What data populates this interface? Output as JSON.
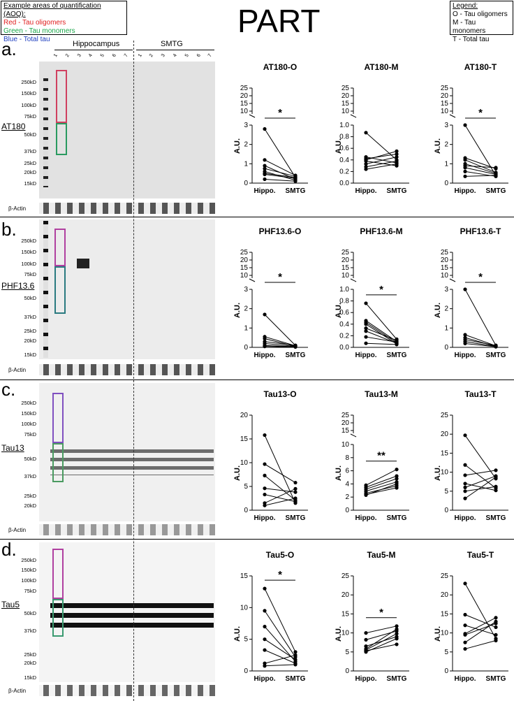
{
  "aoq_box": {
    "title": "Example areas of quantification (AOQ):",
    "lines": [
      {
        "text": "Red - Tau oligomers",
        "color": "#e02020"
      },
      {
        "text": "Green - Tau monomers",
        "color": "#1aa64a"
      },
      {
        "text": "Blue - Total tau",
        "color": "#2040c0"
      }
    ]
  },
  "main_title": "PART",
  "legend_box": {
    "title": "Legend:",
    "lines": [
      "O - Tau oligomers",
      "M - Tau monomers",
      "T - Total tau"
    ]
  },
  "group_headers": {
    "left": "Hippocampus",
    "right": "SMTG"
  },
  "lane_numbers": [
    "1",
    "2",
    "3",
    "4",
    "5",
    "6",
    "7",
    "1",
    "2",
    "3",
    "4",
    "5",
    "6",
    "7"
  ],
  "actin_label": "β-Actin",
  "panels": [
    {
      "letter": "a.",
      "antibody": "AT180",
      "markers": [
        "250kD",
        "150kD",
        "100kD",
        "75kD",
        "50kD",
        "37kD",
        "25kD",
        "20kD",
        "15kD"
      ]
    },
    {
      "letter": "b.",
      "antibody": "PHF13.6",
      "markers": [
        "250kD",
        "150kD",
        "100kD",
        "75kD",
        "50kD",
        "37kD",
        "25kD",
        "20kD",
        "15kD"
      ]
    },
    {
      "letter": "c.",
      "antibody": "Tau13",
      "markers": [
        "250kD",
        "150kD",
        "100kD",
        "75kD",
        "50kD",
        "37kD",
        "25kD",
        "20kD"
      ]
    },
    {
      "letter": "d.",
      "antibody": "Tau5",
      "markers": [
        "250kD",
        "150kD",
        "100kD",
        "75kD",
        "50kD",
        "37kD",
        "25kD",
        "20kD",
        "15kD"
      ]
    }
  ],
  "chart_data": [
    {
      "type": "scatter",
      "title": "AT180-O",
      "ylabel": "A.U.",
      "categories": [
        "Hippo.",
        "SMTG"
      ],
      "broken_axis": true,
      "yticks_low": [
        "0",
        "1",
        "2",
        "3"
      ],
      "yticks_high": [
        "10",
        "15",
        "20",
        "25"
      ],
      "significance": "*",
      "pairs": [
        [
          2.8,
          0.3
        ],
        [
          1.2,
          0.4
        ],
        [
          0.9,
          0.2
        ],
        [
          0.75,
          0.35
        ],
        [
          0.6,
          0.15
        ],
        [
          0.5,
          0.3
        ],
        [
          0.45,
          0.25
        ],
        [
          0.2,
          0.1
        ]
      ]
    },
    {
      "type": "scatter",
      "title": "AT180-M",
      "ylabel": "A.U.",
      "categories": [
        "Hippo.",
        "SMTG"
      ],
      "broken_axis": true,
      "yticks_low": [
        "0.0",
        "0.2",
        "0.4",
        "0.6",
        "0.8",
        "1.0"
      ],
      "yticks_high": [
        "10",
        "15",
        "20",
        "25"
      ],
      "significance": "",
      "pairs": [
        [
          0.87,
          0.4
        ],
        [
          0.45,
          0.35
        ],
        [
          0.42,
          0.5
        ],
        [
          0.4,
          0.55
        ],
        [
          0.38,
          0.3
        ],
        [
          0.33,
          0.45
        ],
        [
          0.28,
          0.38
        ],
        [
          0.24,
          0.33
        ]
      ]
    },
    {
      "type": "scatter",
      "title": "AT180-T",
      "ylabel": "A.U.",
      "categories": [
        "Hippo.",
        "SMTG"
      ],
      "broken_axis": true,
      "yticks_low": [
        "0",
        "1",
        "2",
        "3"
      ],
      "yticks_high": [
        "10",
        "15",
        "20",
        "25"
      ],
      "significance": "*",
      "pairs": [
        [
          3.5,
          0.4
        ],
        [
          1.3,
          0.75
        ],
        [
          1.2,
          0.55
        ],
        [
          1.0,
          0.5
        ],
        [
          0.9,
          0.8
        ],
        [
          0.8,
          0.45
        ],
        [
          0.6,
          0.35
        ],
        [
          0.35,
          0.4
        ]
      ]
    },
    {
      "type": "scatter",
      "title": "PHF13.6-O",
      "ylabel": "A.U.",
      "categories": [
        "Hippo.",
        "SMTG"
      ],
      "broken_axis": true,
      "yticks_low": [
        "0",
        "1",
        "2",
        "3"
      ],
      "yticks_high": [
        "10",
        "15",
        "20",
        "25"
      ],
      "significance": "*",
      "pairs": [
        [
          1.7,
          0.1
        ],
        [
          0.55,
          0.08
        ],
        [
          0.45,
          0.05
        ],
        [
          0.3,
          0.1
        ],
        [
          0.2,
          0.05
        ],
        [
          0.1,
          0.03
        ],
        [
          0.05,
          0.02
        ]
      ]
    },
    {
      "type": "scatter",
      "title": "PHF13.6-M",
      "ylabel": "A.U.",
      "categories": [
        "Hippo.",
        "SMTG"
      ],
      "broken_axis": true,
      "yticks_low": [
        "0.0",
        "0.2",
        "0.4",
        "0.6",
        "0.8",
        "1.0"
      ],
      "yticks_high": [
        "10",
        "15",
        "20",
        "25"
      ],
      "significance": "*",
      "pairs": [
        [
          0.76,
          0.14
        ],
        [
          0.46,
          0.1
        ],
        [
          0.43,
          0.08
        ],
        [
          0.4,
          0.06
        ],
        [
          0.33,
          0.12
        ],
        [
          0.28,
          0.07
        ],
        [
          0.18,
          0.09
        ],
        [
          0.07,
          0.05
        ]
      ]
    },
    {
      "type": "scatter",
      "title": "PHF13.6-T",
      "ylabel": "A.U.",
      "categories": [
        "Hippo.",
        "SMTG"
      ],
      "broken_axis": true,
      "yticks_low": [
        "0",
        "1",
        "2",
        "3"
      ],
      "yticks_high": [
        "10",
        "15",
        "20",
        "25"
      ],
      "significance": "*",
      "pairs": [
        [
          3.0,
          0.1
        ],
        [
          0.65,
          0.08
        ],
        [
          0.5,
          0.05
        ],
        [
          0.4,
          0.1
        ],
        [
          0.3,
          0.05
        ],
        [
          0.2,
          0.03
        ]
      ]
    },
    {
      "type": "scatter",
      "title": "Tau13-O",
      "ylabel": "A.U.",
      "categories": [
        "Hippo.",
        "SMTG"
      ],
      "broken_axis": false,
      "yticks_low": [
        "0",
        "5",
        "10",
        "15",
        "20"
      ],
      "yticks_high": [],
      "significance": "",
      "pairs": [
        [
          15.8,
          1.5
        ],
        [
          9.7,
          5.8
        ],
        [
          7.3,
          2.1
        ],
        [
          4.6,
          3.8
        ],
        [
          3.3,
          1.8
        ],
        [
          1.5,
          4.5
        ],
        [
          1.0,
          2.5
        ]
      ],
      "ylim": [
        0,
        20
      ]
    },
    {
      "type": "scatter",
      "title": "Tau13-M",
      "ylabel": "A.U.",
      "categories": [
        "Hippo.",
        "SMTG"
      ],
      "broken_axis": true,
      "yticks_low": [
        "0",
        "2",
        "4",
        "6",
        "8",
        "10"
      ],
      "yticks_high": [
        "15",
        "20",
        "25"
      ],
      "significance": "**",
      "pairs": [
        [
          3.8,
          6.2
        ],
        [
          3.5,
          5.2
        ],
        [
          3.2,
          4.8
        ],
        [
          2.9,
          4.3
        ],
        [
          2.6,
          3.7
        ],
        [
          2.4,
          3.4
        ],
        [
          2.3,
          4.0
        ]
      ]
    },
    {
      "type": "scatter",
      "title": "Tau13-T",
      "ylabel": "A.U.",
      "categories": [
        "Hippo.",
        "SMTG"
      ],
      "broken_axis": false,
      "yticks_low": [
        "0",
        "5",
        "10",
        "15",
        "20",
        "25"
      ],
      "yticks_high": [],
      "significance": "",
      "pairs": [
        [
          19.7,
          8.3
        ],
        [
          11.9,
          5.8
        ],
        [
          9.2,
          10.5
        ],
        [
          7.0,
          5.2
        ],
        [
          6.0,
          9.0
        ],
        [
          5.0,
          6.2
        ],
        [
          3.1,
          8.7
        ]
      ],
      "ylim": [
        0,
        25
      ]
    },
    {
      "type": "scatter",
      "title": "Tau5-O",
      "ylabel": "A.U.",
      "categories": [
        "Hippo.",
        "SMTG"
      ],
      "broken_axis": false,
      "yticks_low": [
        "0",
        "5",
        "10",
        "15"
      ],
      "yticks_high": [],
      "significance": "*",
      "pairs": [
        [
          13.0,
          3.0
        ],
        [
          9.5,
          2.2
        ],
        [
          7.0,
          1.5
        ],
        [
          5.0,
          1.8
        ],
        [
          3.3,
          1.2
        ],
        [
          1.2,
          2.5
        ],
        [
          0.8,
          1.0
        ]
      ],
      "ylim": [
        0,
        15
      ]
    },
    {
      "type": "scatter",
      "title": "Tau5-M",
      "ylabel": "A.U.",
      "categories": [
        "Hippo.",
        "SMTG"
      ],
      "broken_axis": false,
      "yticks_low": [
        "0",
        "5",
        "10",
        "15",
        "20",
        "25"
      ],
      "yticks_high": [],
      "significance": "*",
      "pairs": [
        [
          10.0,
          11.8
        ],
        [
          8.2,
          10.5
        ],
        [
          6.5,
          9.0
        ],
        [
          5.8,
          11.0
        ],
        [
          5.3,
          7.0
        ],
        [
          5.0,
          8.5
        ],
        [
          5.5,
          9.8
        ]
      ],
      "ylim": [
        0,
        25
      ]
    },
    {
      "type": "scatter",
      "title": "Tau5-T",
      "ylabel": "A.U.",
      "categories": [
        "Hippo.",
        "SMTG"
      ],
      "broken_axis": false,
      "yticks_low": [
        "0",
        "5",
        "10",
        "15",
        "20",
        "25"
      ],
      "yticks_high": [],
      "significance": "",
      "pairs": [
        [
          23.0,
          8.5
        ],
        [
          14.8,
          11.5
        ],
        [
          12.0,
          9.5
        ],
        [
          9.8,
          14.0
        ],
        [
          7.5,
          13.0
        ],
        [
          5.8,
          8.0
        ],
        [
          9.5,
          12.5
        ]
      ],
      "ylim": [
        0,
        25
      ]
    }
  ]
}
